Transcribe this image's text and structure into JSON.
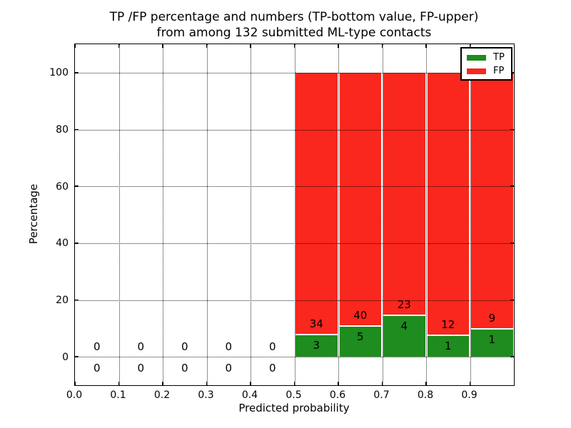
{
  "title": {
    "line1": "TP /FP percentage and numbers (TP-bottom value, FP-upper)",
    "line2": "from among 132 submitted ML-type contacts"
  },
  "y_axis": {
    "label": "Percentage",
    "ticks": [
      "0",
      "20",
      "40",
      "60",
      "80",
      "100"
    ]
  },
  "x_axis": {
    "label": "Predicted probability",
    "ticks": [
      "0.0",
      "0.1",
      "0.2",
      "0.3",
      "0.4",
      "0.5",
      "0.6",
      "0.7",
      "0.8",
      "0.9"
    ]
  },
  "legend": {
    "items": [
      {
        "label": "TP",
        "color": "#1e8c1e"
      },
      {
        "label": "FP",
        "color": "#f9271d"
      }
    ]
  },
  "chart_data": {
    "type": "bar",
    "stacked": true,
    "title": "TP /FP percentage and numbers (TP-bottom value, FP-upper) from among 132 submitted ML-type contacts",
    "xlabel": "Predicted probability",
    "ylabel": "Percentage",
    "xlim": [
      0.0,
      1.0
    ],
    "ylim": [
      -10,
      110
    ],
    "grid": "dotted, drawn above bars",
    "legend_position": "upper right",
    "total_contacts": 132,
    "bin_edges": [
      0.0,
      0.1,
      0.2,
      0.3,
      0.4,
      0.5,
      0.6,
      0.7,
      0.8,
      0.9,
      1.0
    ],
    "categories": [
      "0.0-0.1",
      "0.1-0.2",
      "0.2-0.3",
      "0.3-0.4",
      "0.4-0.5",
      "0.5-0.6",
      "0.6-0.7",
      "0.7-0.8",
      "0.8-0.9",
      "0.9-1.0"
    ],
    "series": [
      {
        "name": "TP",
        "color": "#1e8c1e",
        "counts": [
          0,
          0,
          0,
          0,
          0,
          3,
          5,
          4,
          1,
          1
        ],
        "percent": [
          0,
          0,
          0,
          0,
          0,
          8.1,
          11.1,
          14.8,
          7.7,
          10.0
        ]
      },
      {
        "name": "FP",
        "color": "#f9271d",
        "counts": [
          0,
          0,
          0,
          0,
          0,
          34,
          40,
          23,
          12,
          9
        ],
        "percent": [
          0,
          0,
          0,
          0,
          0,
          91.9,
          88.9,
          85.2,
          92.3,
          90.0
        ]
      }
    ]
  }
}
